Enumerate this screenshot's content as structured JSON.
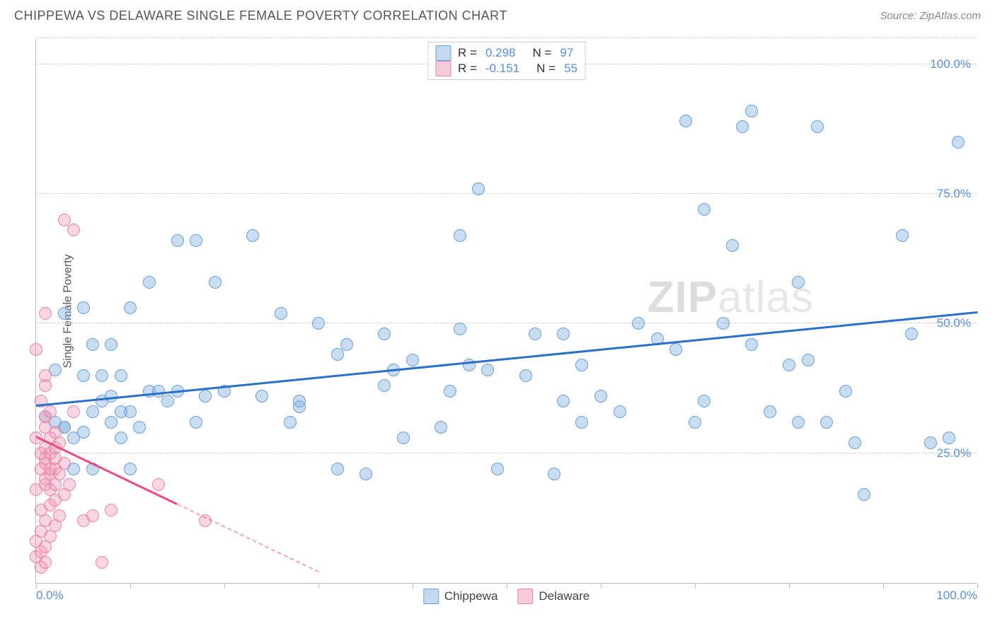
{
  "header": {
    "title": "CHIPPEWA VS DELAWARE SINGLE FEMALE POVERTY CORRELATION CHART",
    "source": "Source: ZipAtlas.com"
  },
  "watermark": {
    "bold": "ZIP",
    "rest": "atlas"
  },
  "chart": {
    "type": "scatter",
    "ylabel": "Single Female Poverty",
    "xlim": [
      0,
      100
    ],
    "ylim": [
      0,
      105
    ],
    "y_gridlines": [
      25,
      50,
      75,
      100,
      105
    ],
    "y_labels": [
      {
        "v": 25,
        "t": "25.0%"
      },
      {
        "v": 50,
        "t": "50.0%"
      },
      {
        "v": 75,
        "t": "75.0%"
      },
      {
        "v": 100,
        "t": "100.0%"
      }
    ],
    "x_labels": [
      {
        "v": 0,
        "t": "0.0%"
      },
      {
        "v": 100,
        "t": "100.0%"
      }
    ],
    "x_ticks": [
      0,
      10,
      20,
      30,
      40,
      50,
      60,
      70,
      80,
      90,
      100
    ],
    "background_color": "#ffffff",
    "grid_color": "#cccccc",
    "marker_size": 18,
    "series": [
      {
        "name": "Chippewa",
        "color_fill": "rgba(135,179,226,0.45)",
        "color_stroke": "#6b9fd6",
        "trend_color": "#2a6fc9",
        "R": "0.298",
        "N": "97",
        "trend": {
          "x1": 0,
          "y1": 34,
          "x2": 100,
          "y2": 52
        },
        "points": [
          [
            1,
            32
          ],
          [
            2,
            31
          ],
          [
            2,
            41
          ],
          [
            3,
            30
          ],
          [
            3,
            30
          ],
          [
            3,
            52
          ],
          [
            4,
            22
          ],
          [
            4,
            28
          ],
          [
            5,
            29
          ],
          [
            5,
            40
          ],
          [
            5,
            53
          ],
          [
            6,
            22
          ],
          [
            6,
            33
          ],
          [
            6,
            46
          ],
          [
            7,
            35
          ],
          [
            7,
            40
          ],
          [
            8,
            31
          ],
          [
            8,
            36
          ],
          [
            8,
            46
          ],
          [
            9,
            28
          ],
          [
            9,
            33
          ],
          [
            9,
            40
          ],
          [
            10,
            22
          ],
          [
            10,
            33
          ],
          [
            10,
            53
          ],
          [
            11,
            30
          ],
          [
            12,
            37
          ],
          [
            12,
            58
          ],
          [
            13,
            37
          ],
          [
            14,
            35
          ],
          [
            15,
            66
          ],
          [
            15,
            37
          ],
          [
            17,
            31
          ],
          [
            17,
            66
          ],
          [
            18,
            36
          ],
          [
            19,
            58
          ],
          [
            20,
            37
          ],
          [
            23,
            67
          ],
          [
            24,
            36
          ],
          [
            26,
            52
          ],
          [
            27,
            31
          ],
          [
            28,
            34
          ],
          [
            28,
            35
          ],
          [
            30,
            50
          ],
          [
            32,
            22
          ],
          [
            32,
            44
          ],
          [
            33,
            46
          ],
          [
            35,
            21
          ],
          [
            37,
            48
          ],
          [
            37,
            38
          ],
          [
            38,
            41
          ],
          [
            39,
            28
          ],
          [
            40,
            43
          ],
          [
            43,
            30
          ],
          [
            44,
            37
          ],
          [
            45,
            49
          ],
          [
            45,
            67
          ],
          [
            46,
            42
          ],
          [
            47,
            76
          ],
          [
            48,
            41
          ],
          [
            49,
            22
          ],
          [
            52,
            40
          ],
          [
            53,
            48
          ],
          [
            55,
            21
          ],
          [
            56,
            35
          ],
          [
            56,
            48
          ],
          [
            58,
            42
          ],
          [
            58,
            31
          ],
          [
            60,
            36
          ],
          [
            62,
            33
          ],
          [
            64,
            50
          ],
          [
            66,
            47
          ],
          [
            68,
            45
          ],
          [
            69,
            89
          ],
          [
            70,
            31
          ],
          [
            71,
            35
          ],
          [
            71,
            72
          ],
          [
            73,
            50
          ],
          [
            74,
            65
          ],
          [
            75,
            88
          ],
          [
            76,
            46
          ],
          [
            76,
            91
          ],
          [
            78,
            33
          ],
          [
            80,
            42
          ],
          [
            81,
            31
          ],
          [
            81,
            58
          ],
          [
            82,
            43
          ],
          [
            83,
            88
          ],
          [
            84,
            31
          ],
          [
            86,
            37
          ],
          [
            87,
            27
          ],
          [
            88,
            17
          ],
          [
            92,
            67
          ],
          [
            93,
            48
          ],
          [
            95,
            27
          ],
          [
            97,
            28
          ],
          [
            98,
            85
          ]
        ]
      },
      {
        "name": "Delaware",
        "color_fill": "rgba(240,150,180,0.40)",
        "color_stroke": "#e584a8",
        "trend_color": "#e94b85",
        "R": "-0.151",
        "N": "55",
        "trend": {
          "x1": 0,
          "y1": 28,
          "x2": 15,
          "y2": 15
        },
        "trend_dash": {
          "x1": 15,
          "y1": 15,
          "x2": 30,
          "y2": 2
        },
        "points": [
          [
            0,
            5
          ],
          [
            0,
            8
          ],
          [
            0,
            18
          ],
          [
            0,
            28
          ],
          [
            0,
            45
          ],
          [
            0.5,
            3
          ],
          [
            0.5,
            6
          ],
          [
            0.5,
            10
          ],
          [
            0.5,
            14
          ],
          [
            0.5,
            22
          ],
          [
            0.5,
            25
          ],
          [
            0.5,
            35
          ],
          [
            1,
            4
          ],
          [
            1,
            7
          ],
          [
            1,
            12
          ],
          [
            1,
            19
          ],
          [
            1,
            20
          ],
          [
            1,
            23
          ],
          [
            1,
            24
          ],
          [
            1,
            26
          ],
          [
            1,
            30
          ],
          [
            1,
            32
          ],
          [
            1,
            38
          ],
          [
            1,
            40
          ],
          [
            1,
            52
          ],
          [
            1.5,
            9
          ],
          [
            1.5,
            15
          ],
          [
            1.5,
            18
          ],
          [
            1.5,
            21
          ],
          [
            1.5,
            22
          ],
          [
            1.5,
            25
          ],
          [
            1.5,
            28
          ],
          [
            1.5,
            33
          ],
          [
            2,
            11
          ],
          [
            2,
            16
          ],
          [
            2,
            19
          ],
          [
            2,
            22
          ],
          [
            2,
            24
          ],
          [
            2,
            26
          ],
          [
            2,
            29
          ],
          [
            2.5,
            13
          ],
          [
            2.5,
            21
          ],
          [
            2.5,
            27
          ],
          [
            3,
            17
          ],
          [
            3,
            23
          ],
          [
            3,
            70
          ],
          [
            3.5,
            19
          ],
          [
            4,
            33
          ],
          [
            4,
            68
          ],
          [
            5,
            12
          ],
          [
            6,
            13
          ],
          [
            7,
            4
          ],
          [
            8,
            14
          ],
          [
            13,
            19
          ],
          [
            18,
            12
          ]
        ]
      }
    ],
    "legend_top_labels": {
      "R": "R =",
      "N": "N ="
    },
    "legend_bottom": [
      "Chippewa",
      "Delaware"
    ]
  }
}
